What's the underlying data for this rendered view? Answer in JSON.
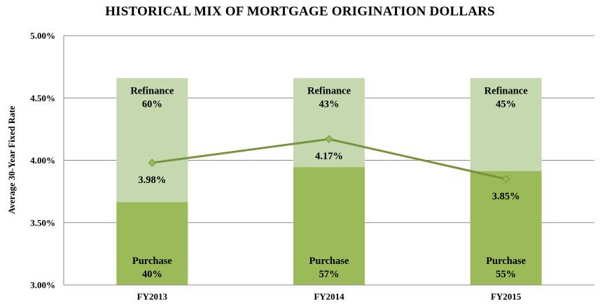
{
  "chart_data": {
    "type": "bar",
    "title": "HISTORICAL MIX OF MORTGAGE ORIGINATION DOLLARS",
    "ylabel": "Average 30-Year Fixed Rate",
    "xlabel": "",
    "ylim": [
      3.0,
      5.0
    ],
    "y_ticks": [
      "3.00%",
      "3.50%",
      "4.00%",
      "4.50%",
      "5.00%"
    ],
    "y_tick_values": [
      3.0,
      3.5,
      4.0,
      4.5,
      5.0
    ],
    "grid": true,
    "categories": [
      "FY2013",
      "FY2014",
      "FY2015"
    ],
    "stack_total": 100,
    "stack_top_value": 4.66,
    "series": [
      {
        "name": "Purchase",
        "kind": "stacked-bar",
        "values": [
          40,
          57,
          55
        ],
        "labels": [
          "40%",
          "57%",
          "55%"
        ],
        "color": "#9BBB59"
      },
      {
        "name": "Refinance",
        "kind": "stacked-bar",
        "values": [
          60,
          43,
          45
        ],
        "labels": [
          "60%",
          "43%",
          "45%"
        ],
        "color": "#C6D8B0"
      },
      {
        "name": "",
        "kind": "line",
        "values": [
          3.98,
          4.17,
          3.85
        ],
        "labels": [
          "3.98%",
          "4.17%",
          "3.85%"
        ],
        "color": "#77933C"
      }
    ]
  }
}
